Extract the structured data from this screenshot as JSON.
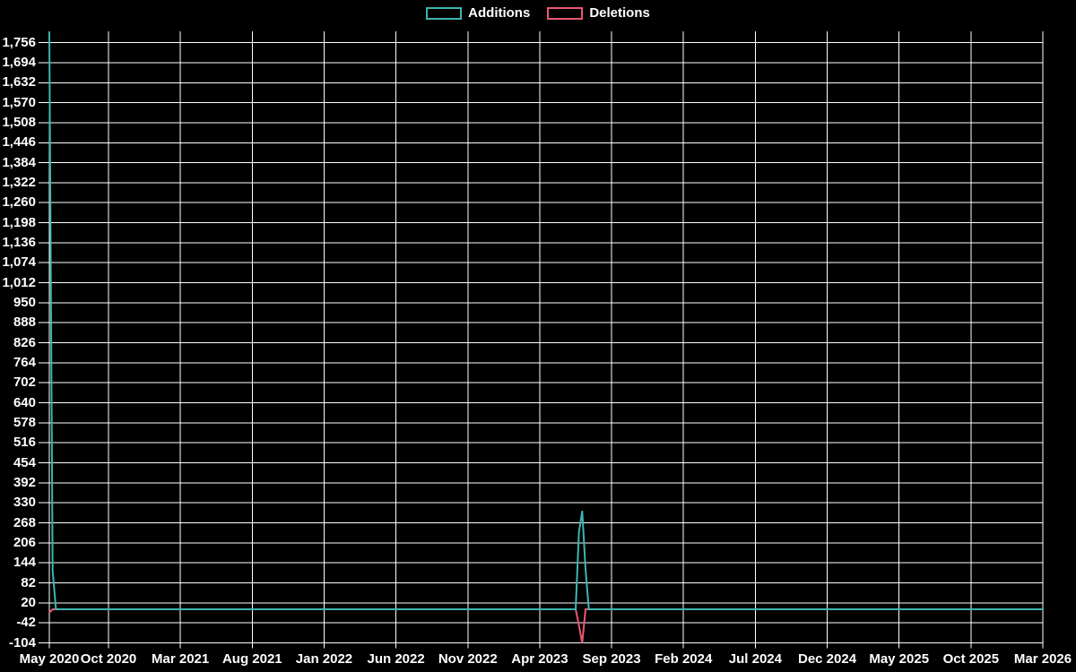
{
  "legend": {
    "items": [
      {
        "label": "Additions",
        "color": "#3db6b1"
      },
      {
        "label": "Deletions",
        "color": "#ec5772"
      }
    ]
  },
  "colors": {
    "background": "#000000",
    "grid": "#ffffff",
    "text": "#ffffff",
    "additions": "#3db6b1",
    "deletions": "#ec5772"
  },
  "chart_data": {
    "type": "line",
    "title": "",
    "legend_position": "top-center",
    "grid": true,
    "background": "#000000",
    "y_axis": {
      "range": [
        -104,
        1791
      ],
      "interval": 62,
      "ticks": [
        1756,
        1694,
        1632,
        1570,
        1508,
        1446,
        1384,
        1322,
        1260,
        1198,
        1136,
        1074,
        1012,
        950,
        888,
        826,
        764,
        702,
        640,
        578,
        516,
        454,
        392,
        330,
        268,
        206,
        144,
        82,
        20,
        -42,
        -104
      ],
      "tick_labels": [
        "1,756",
        "1,694",
        "1,632",
        "1,570",
        "1,508",
        "1,446",
        "1,384",
        "1,322",
        "1,260",
        "1,198",
        "1,136",
        "1,074",
        "1,012",
        "950",
        "888",
        "826",
        "764",
        "702",
        "640",
        "578",
        "516",
        "454",
        "392",
        "330",
        "268",
        "206",
        "144",
        "82",
        "20",
        "-42",
        "-104"
      ]
    },
    "x_axis": {
      "range": [
        "2020-05-30",
        "2026-03-01"
      ],
      "tick_labels": [
        "May 2020",
        "Oct 2020",
        "Mar 2021",
        "Aug 2021",
        "Jan 2022",
        "Jun 2022",
        "Nov 2022",
        "Apr 2023",
        "Sep 2023",
        "Feb 2024",
        "Jul 2024",
        "Dec 2024",
        "May 2025",
        "Oct 2025",
        "Mar 2026"
      ]
    },
    "series": [
      {
        "name": "Additions",
        "color": "#3db6b1",
        "note": "weekly values; all weeks between keypoints are 0",
        "points": [
          [
            "2020-05-30",
            1790
          ],
          [
            "2020-06-06",
            120
          ],
          [
            "2020-06-13",
            0
          ],
          [
            "2023-06-17",
            0
          ],
          [
            "2023-06-24",
            240
          ],
          [
            "2023-07-01",
            305
          ],
          [
            "2023-07-08",
            125
          ],
          [
            "2023-07-15",
            0
          ],
          [
            "2026-03-01",
            0
          ]
        ]
      },
      {
        "name": "Deletions",
        "color": "#ec5772",
        "note": "weekly values; all weeks between keypoints are 0",
        "points": [
          [
            "2020-05-30",
            -10
          ],
          [
            "2020-06-06",
            0
          ],
          [
            "2023-06-17",
            0
          ],
          [
            "2023-06-24",
            -50
          ],
          [
            "2023-07-01",
            -104
          ],
          [
            "2023-07-08",
            0
          ],
          [
            "2026-03-01",
            0
          ]
        ]
      }
    ]
  }
}
